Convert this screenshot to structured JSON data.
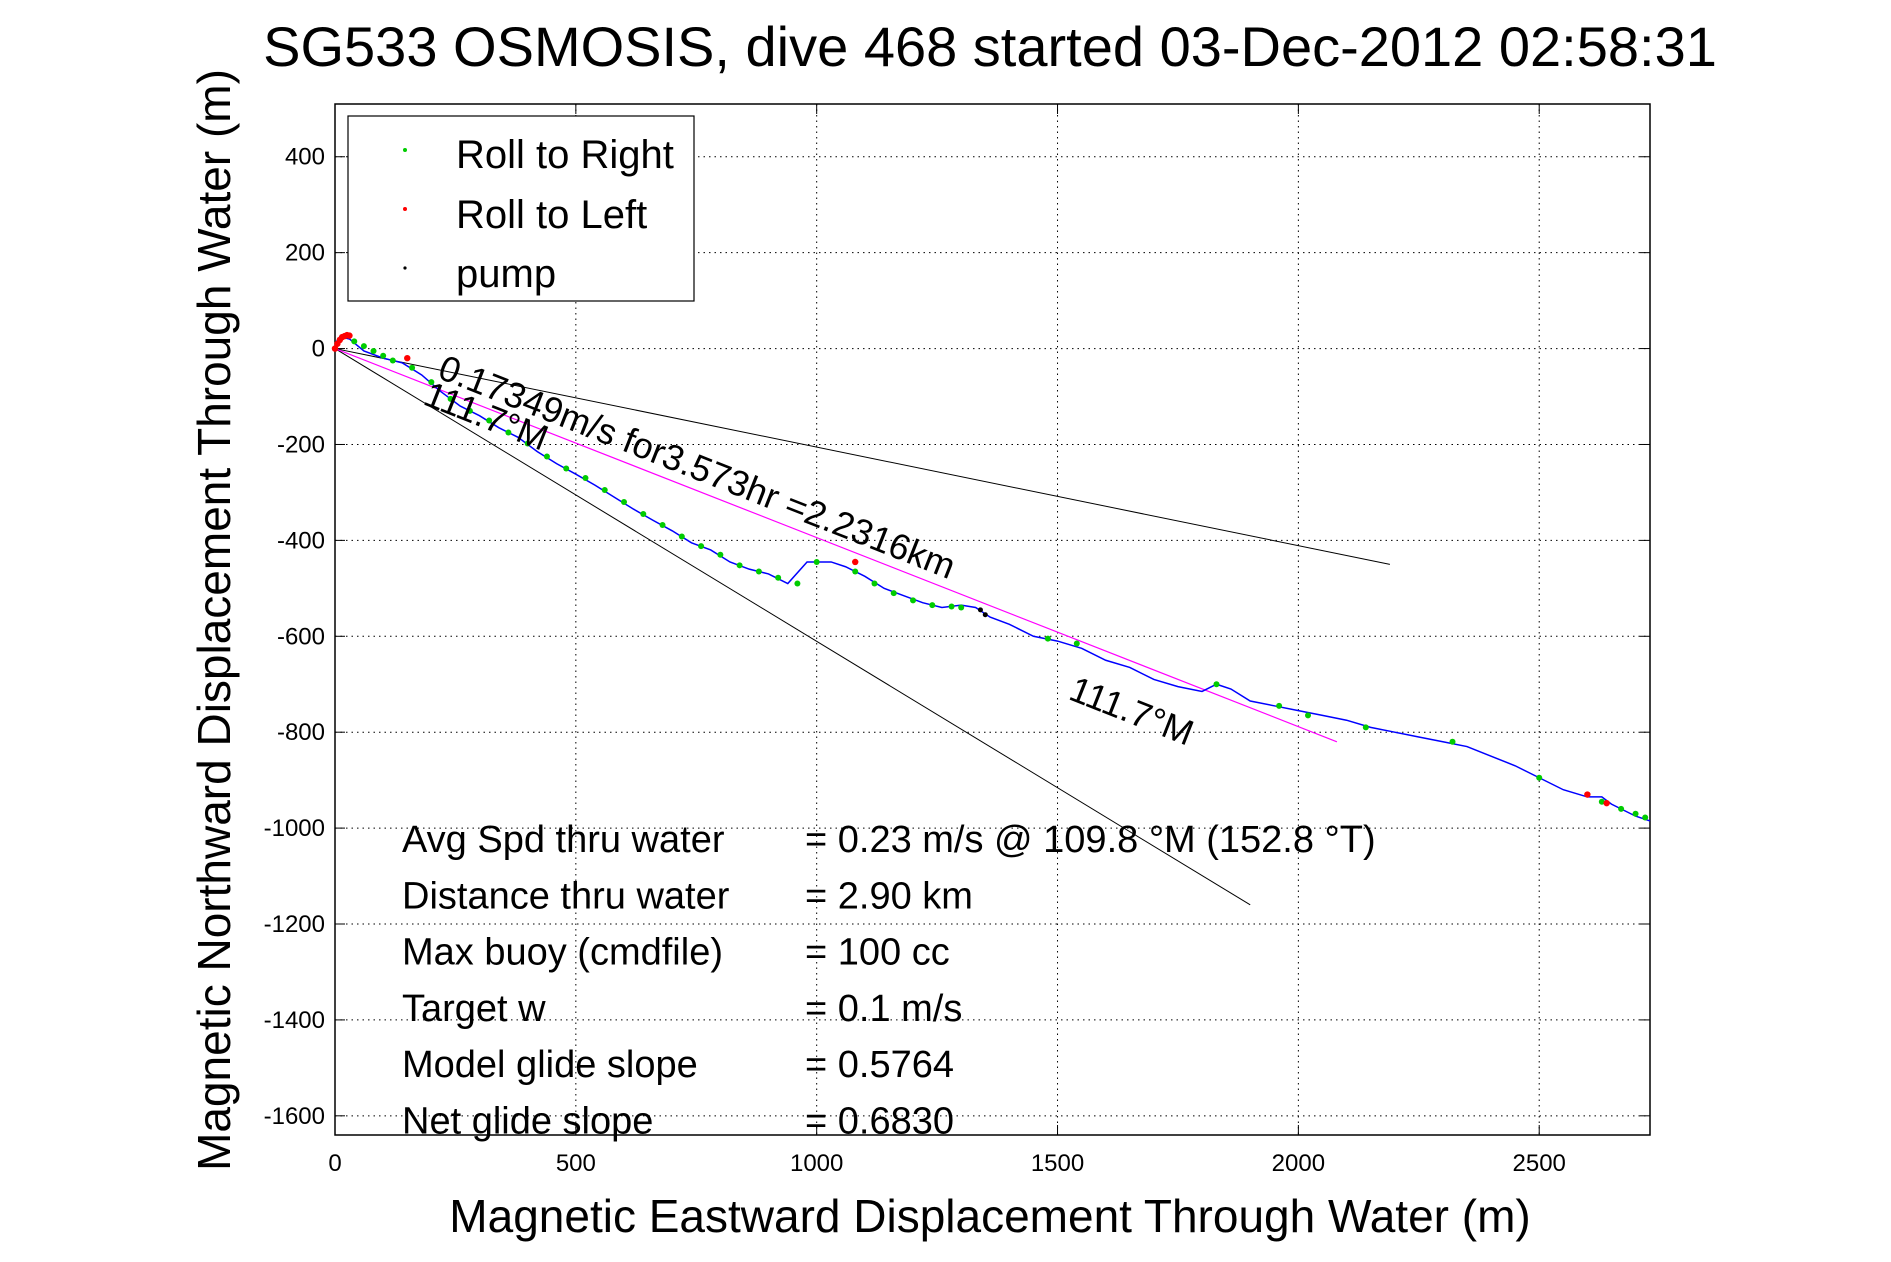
{
  "chart_data": {
    "type": "scatter",
    "title": "SG533 OSMOSIS, dive 468 started 03-Dec-2012 02:58:31",
    "xlabel": "Magnetic Eastward Displacement Through Water (m)",
    "ylabel": "Magnetic Northward Displacement Through Water (m)",
    "xlim": [
      0,
      2730
    ],
    "ylim": [
      -1640,
      510
    ],
    "xticks": [
      0,
      500,
      1000,
      1500,
      2000,
      2500
    ],
    "yticks": [
      400,
      200,
      0,
      -200,
      -400,
      -600,
      -800,
      -1000,
      -1200,
      -1400,
      -1600
    ],
    "grid": true,
    "legend_position": "top-left",
    "legend": [
      {
        "name": "Roll to Right",
        "color": "#00cc00"
      },
      {
        "name": "Roll to Left",
        "color": "#ff0000"
      },
      {
        "name": "pump",
        "color": "#000000"
      }
    ],
    "colors": {
      "track": "#0000ff",
      "roll_right": "#00cc00",
      "roll_left": "#ff0000",
      "pump": "#000000",
      "fit_line": "#ff00ff",
      "bound_lines": "#000000"
    },
    "track": {
      "x": [
        0,
        10,
        30,
        60,
        100,
        140,
        180,
        220,
        260,
        300,
        340,
        380,
        420,
        460,
        500,
        540,
        580,
        620,
        660,
        700,
        740,
        780,
        820,
        860,
        900,
        940,
        980,
        1000,
        1030,
        1060,
        1100,
        1140,
        1180,
        1220,
        1260,
        1300,
        1330,
        1360,
        1400,
        1450,
        1500,
        1550,
        1600,
        1650,
        1700,
        1750,
        1800,
        1830,
        1860,
        1900,
        1950,
        2000,
        2050,
        2100,
        2150,
        2200,
        2250,
        2300,
        2350,
        2400,
        2450,
        2500,
        2550,
        2600,
        2630,
        2650,
        2700,
        2730
      ],
      "y": [
        10,
        25,
        20,
        -5,
        -20,
        -30,
        -55,
        -90,
        -120,
        -140,
        -165,
        -185,
        -215,
        -240,
        -262,
        -285,
        -310,
        -335,
        -358,
        -380,
        -405,
        -420,
        -445,
        -460,
        -470,
        -490,
        -445,
        -445,
        -445,
        -455,
        -475,
        -500,
        -515,
        -530,
        -540,
        -535,
        -540,
        -560,
        -575,
        -600,
        -610,
        -625,
        -650,
        -665,
        -690,
        -705,
        -715,
        -700,
        -710,
        -735,
        -745,
        -755,
        -765,
        -775,
        -790,
        -800,
        -810,
        -820,
        -830,
        -850,
        -870,
        -895,
        -920,
        -935,
        -935,
        -950,
        -975,
        -985
      ]
    },
    "roll_right": {
      "x": [
        40,
        60,
        80,
        100,
        120,
        160,
        200,
        240,
        280,
        320,
        360,
        400,
        440,
        480,
        520,
        560,
        600,
        640,
        680,
        720,
        760,
        800,
        840,
        880,
        920,
        960,
        1000,
        1080,
        1120,
        1160,
        1200,
        1240,
        1280,
        1300,
        1480,
        1540,
        1830,
        1960,
        2020,
        2140,
        2320,
        2500,
        2630,
        2670,
        2700,
        2720
      ],
      "y": [
        15,
        5,
        -5,
        -15,
        -25,
        -40,
        -70,
        -105,
        -130,
        -150,
        -175,
        -198,
        -225,
        -250,
        -270,
        -295,
        -320,
        -345,
        -368,
        -392,
        -412,
        -430,
        -452,
        -465,
        -478,
        -490,
        -445,
        -465,
        -490,
        -510,
        -525,
        -535,
        -538,
        -540,
        -605,
        -615,
        -700,
        -745,
        -765,
        -790,
        -820,
        -895,
        -945,
        -960,
        -970,
        -978
      ]
    },
    "roll_left": {
      "x": [
        0,
        5,
        10,
        15,
        20,
        25,
        30,
        150,
        1080,
        2600,
        2640
      ],
      "y": [
        0,
        10,
        18,
        24,
        26,
        28,
        27,
        -20,
        -445,
        -930,
        -948
      ]
    },
    "pump": {
      "x": [
        1340,
        1350
      ],
      "y": [
        -545,
        -555
      ]
    },
    "fit_line": {
      "x": [
        0,
        2080
      ],
      "y": [
        0,
        -820
      ],
      "color": "#ff00ff"
    },
    "bound_lines": [
      {
        "x": [
          0,
          2190
        ],
        "y": [
          0,
          -450
        ]
      },
      {
        "x": [
          0,
          1900
        ],
        "y": [
          0,
          -1160
        ]
      }
    ],
    "annotations": [
      {
        "text": "0.17349m/s for3.573hr =2.2316km",
        "x": 210,
        "y": -60,
        "angle_deg": 21.5
      },
      {
        "text": "111.7°M",
        "x": 180,
        "y": -115,
        "angle_deg": 21.5
      },
      {
        "text": "111.7°M",
        "x": 1520,
        "y": -730,
        "angle_deg": 21.5
      }
    ],
    "stats": [
      {
        "label": "Avg Spd thru water",
        "value": "=  0.23 m/s @ 109.8 °M (152.8 °T)"
      },
      {
        "label": "Distance thru water",
        "value": "=  2.90 km"
      },
      {
        "label": "Max buoy (cmdfile)",
        "value": "= 100 cc"
      },
      {
        "label": "Target w",
        "value": "= 0.1 m/s"
      },
      {
        "label": "Model glide slope",
        "value": "= 0.5764"
      },
      {
        "label": "Net glide slope",
        "value": "= 0.6830"
      }
    ]
  }
}
